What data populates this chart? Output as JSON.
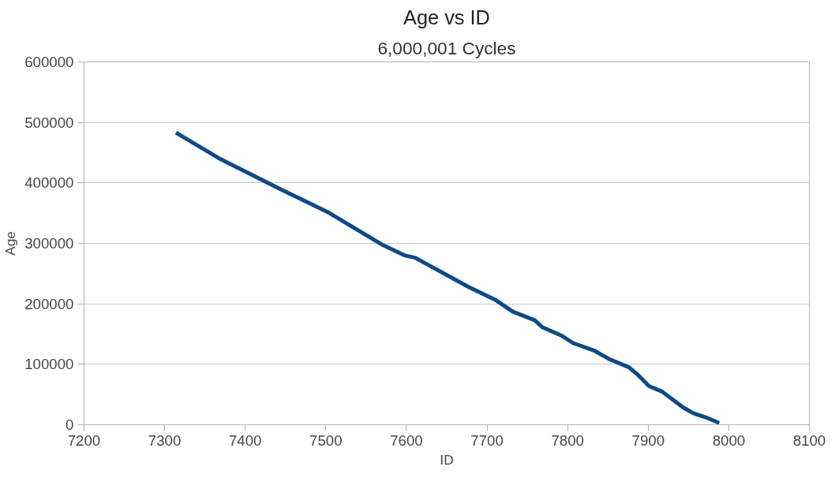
{
  "chart_data": {
    "type": "line",
    "title": "Age vs ID",
    "subtitle": "6,000,001 Cycles",
    "xlabel": "ID",
    "ylabel": "Age",
    "x": [
      7314,
      7367,
      7443,
      7502,
      7571,
      7598,
      7611,
      7677,
      7711,
      7732,
      7759,
      7769,
      7793,
      7807,
      7834,
      7851,
      7876,
      7886,
      7901,
      7917,
      7944,
      7956,
      7972,
      7988
    ],
    "series": [
      {
        "color": "#0e4a84",
        "values": [
          483000,
          441000,
          390000,
          352000,
          297000,
          280000,
          276000,
          228000,
          206000,
          187000,
          173000,
          161000,
          147000,
          135000,
          122000,
          109000,
          95000,
          84000,
          64000,
          55000,
          28000,
          19000,
          12000,
          3000
        ]
      }
    ],
    "xlim": [
      7200,
      8100
    ],
    "xticks": [
      7200,
      7300,
      7400,
      7500,
      7600,
      7700,
      7800,
      7900,
      8000,
      8100
    ],
    "ylim": [
      0,
      600000
    ],
    "yticks": [
      0,
      100000,
      200000,
      300000,
      400000,
      500000,
      600000
    ],
    "grid": "y",
    "marker": "none",
    "line_style": "solid"
  }
}
